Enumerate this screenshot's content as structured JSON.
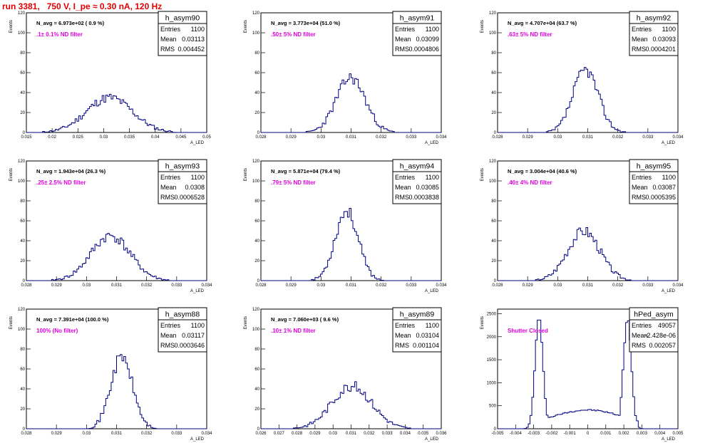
{
  "page_title": "run 3381,   750 V, I_pe ≈ 0.30 nA, 120 Hz",
  "ylabel": "Events",
  "colors": {
    "hist": "#000080",
    "title": "#e00000",
    "note": "#e000e0"
  },
  "chart_data": [
    {
      "type": "histogram",
      "name": "h_asym90",
      "navg": "N_avg = 6.973e+02 ( 0.9 %)",
      "note": ".1± 0.1% ND filter",
      "stats": {
        "entries": "1100",
        "mean": "0.03113",
        "rms": "0.004452"
      },
      "xlim": [
        0.015,
        0.05
      ],
      "ylim": [
        0,
        120
      ],
      "xticks": [
        "0.015",
        "0.02",
        "0.025",
        "0.03",
        "0.035",
        "0.04",
        "0.045",
        "0.05"
      ],
      "yticks": [
        "0",
        "20",
        "40",
        "60",
        "80",
        "100",
        "120"
      ],
      "xlabel": "A_LED",
      "mean_v": 0.03113,
      "rms_v": 0.004452,
      "peak": 35,
      "seed": 11
    },
    {
      "type": "histogram",
      "name": "h_asym91",
      "navg": "N_avg = 3.773e+04 (51.0 %)",
      "note": ".50± 5% ND filter",
      "stats": {
        "entries": "1100",
        "mean": "0.03099",
        "rms": "0.0004806"
      },
      "xlim": [
        0.028,
        0.034
      ],
      "ylim": [
        0,
        120
      ],
      "xticks": [
        "0.028",
        "0.029",
        "0.03",
        "0.031",
        "0.032",
        "0.033",
        "0.034"
      ],
      "yticks": [
        "0",
        "20",
        "40",
        "60",
        "80",
        "100",
        "120"
      ],
      "xlabel": "A_LED",
      "mean_v": 0.03099,
      "rms_v": 0.0004806,
      "peak": 55,
      "seed": 23
    },
    {
      "type": "histogram",
      "name": "h_asym92",
      "navg": "N_avg = 4.707e+04 (63.7 %)",
      "note": ".63± 5% ND filter",
      "stats": {
        "entries": "1100",
        "mean": "0.03093",
        "rms": "0.0004201"
      },
      "xlim": [
        0.028,
        0.034
      ],
      "ylim": [
        0,
        120
      ],
      "xticks": [
        "0.028",
        "0.029",
        "0.03",
        "0.031",
        "0.032",
        "0.033",
        "0.034"
      ],
      "yticks": [
        "0",
        "20",
        "40",
        "60",
        "80",
        "100",
        "120"
      ],
      "xlabel": "A_LED",
      "mean_v": 0.03093,
      "rms_v": 0.0004201,
      "peak": 63,
      "seed": 37
    },
    {
      "type": "histogram",
      "name": "h_asym93",
      "navg": "N_avg = 1.943e+04 (26.3 %)",
      "note": ".25± 2.5% ND filter",
      "stats": {
        "entries": "1100",
        "mean": "0.0308",
        "rms": "0.0006528"
      },
      "xlim": [
        0.028,
        0.034
      ],
      "ylim": [
        0,
        120
      ],
      "xticks": [
        "0.028",
        "0.029",
        "0.03",
        "0.031",
        "0.032",
        "0.033",
        "0.034"
      ],
      "yticks": [
        "0",
        "20",
        "40",
        "60",
        "80",
        "100",
        "120"
      ],
      "xlabel": "A_LED",
      "mean_v": 0.0308,
      "rms_v": 0.0006528,
      "peak": 45,
      "seed": 41
    },
    {
      "type": "histogram",
      "name": "h_asym94",
      "navg": "N_avg = 5.871e+04 (79.4 %)",
      "note": ".79± 5% ND filter",
      "stats": {
        "entries": "1100",
        "mean": "0.03085",
        "rms": "0.0003838"
      },
      "xlim": [
        0.028,
        0.034
      ],
      "ylim": [
        0,
        120
      ],
      "xticks": [
        "0.028",
        "0.029",
        "0.03",
        "0.031",
        "0.032",
        "0.033",
        "0.034"
      ],
      "yticks": [
        "0",
        "20",
        "40",
        "60",
        "80",
        "100",
        "120"
      ],
      "xlabel": "A_LED",
      "mean_v": 0.03085,
      "rms_v": 0.0003838,
      "peak": 70,
      "seed": 53
    },
    {
      "type": "histogram",
      "name": "h_asym95",
      "navg": "N_avg = 3.004e+04 (40.6 %)",
      "note": ".40± 4% ND filter",
      "stats": {
        "entries": "1100",
        "mean": "0.03087",
        "rms": "0.0005395"
      },
      "xlim": [
        0.028,
        0.034
      ],
      "ylim": [
        0,
        120
      ],
      "xticks": [
        "0.028",
        "0.029",
        "0.03",
        "0.031",
        "0.032",
        "0.033",
        "0.034"
      ],
      "yticks": [
        "0",
        "20",
        "40",
        "60",
        "80",
        "100",
        "120"
      ],
      "xlabel": "A_LED",
      "mean_v": 0.03087,
      "rms_v": 0.0005395,
      "peak": 50,
      "seed": 67
    },
    {
      "type": "histogram",
      "name": "h_asym88",
      "navg": "N_avg = 7.391e+04 (100.0 %)",
      "note": "100% (No filter)",
      "stats": {
        "entries": "1100",
        "mean": "0.03117",
        "rms": "0.0003646"
      },
      "xlim": [
        0.028,
        0.034
      ],
      "ylim": [
        0,
        120
      ],
      "xticks": [
        "0.028",
        "0.029",
        "0.03",
        "0.031",
        "0.032",
        "0.033",
        "0.034"
      ],
      "yticks": [
        "0",
        "20",
        "40",
        "60",
        "80",
        "100",
        "120"
      ],
      "xlabel": "A_LED",
      "mean_v": 0.03117,
      "rms_v": 0.0003646,
      "peak": 72,
      "seed": 71
    },
    {
      "type": "histogram",
      "name": "h_asym89",
      "navg": "N_avg = 7.060e+03 ( 9.6 %)",
      "note": ".10± 1% ND filter",
      "stats": {
        "entries": "1100",
        "mean": "0.03104",
        "rms": "0.001104"
      },
      "xlim": [
        0.026,
        0.036
      ],
      "ylim": [
        0,
        120
      ],
      "xticks": [
        "0.026",
        "0.027",
        "0.028",
        "0.029",
        "0.03",
        "0.031",
        "0.032",
        "0.033",
        "0.034",
        "0.035",
        "0.036"
      ],
      "yticks": [
        "0",
        "20",
        "40",
        "60",
        "80",
        "100",
        "120"
      ],
      "xlabel": "A_LED",
      "mean_v": 0.03104,
      "rms_v": 0.001104,
      "peak": 43,
      "seed": 83
    },
    {
      "type": "histogram",
      "name": "hPed_asym",
      "navg": "",
      "note": "Shutter Closed",
      "stats": {
        "entries": "49057",
        "mean": "-2.428e-06",
        "rms": "0.002057"
      },
      "xlim": [
        -0.005,
        0.005
      ],
      "ylim": [
        0,
        2600
      ],
      "xticks": [
        "-0.005",
        "-0.004",
        "-0.003",
        "-0.002",
        "-0.001",
        "0",
        "0.001",
        "0.002",
        "0.003",
        "0.004",
        "0.005"
      ],
      "yticks": [
        "0",
        "500",
        "1000",
        "1500",
        "2000",
        "2500"
      ],
      "xlabel": "A_LED",
      "mean_v": 0,
      "rms_v": 0.002057,
      "peak": 2400,
      "seed": 97,
      "bimodal": true
    }
  ]
}
